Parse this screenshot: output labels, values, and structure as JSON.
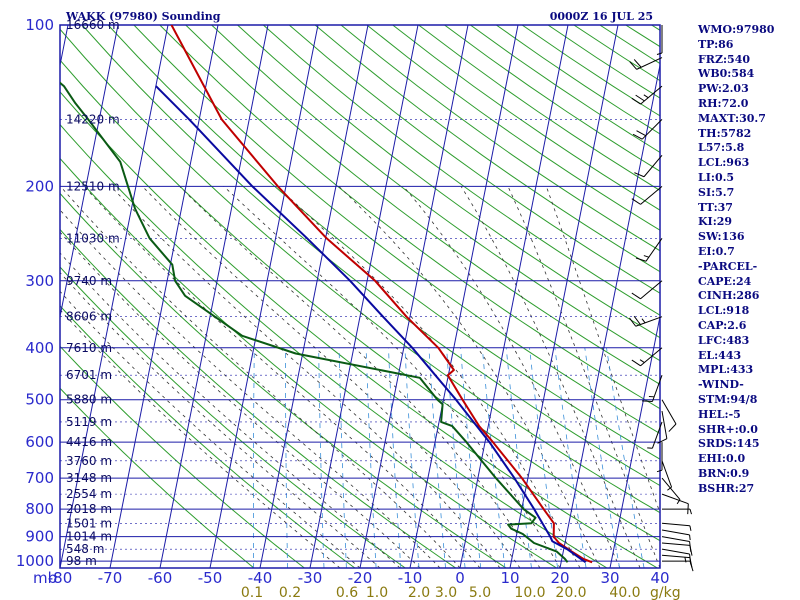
{
  "header": {
    "station": "WAKK (97980) Sounding",
    "datetime": "0000Z 16 JUL 25"
  },
  "colors": {
    "grid": "#1c1ca8",
    "dry_adiabat": "#2e9d2e",
    "moist_adiabat": "#333333",
    "mixing_ratio": "#3a8fd8",
    "temperature": "#c00000",
    "dewpoint": "#0a5a14",
    "parcel": "#0a0aa0",
    "wind": "#000000"
  },
  "chart_data": {
    "type": "line",
    "title": "WAKK (97980) Sounding",
    "pressure_axis": {
      "unit_label": "mb",
      "levels": [
        100,
        200,
        300,
        400,
        500,
        600,
        700,
        800,
        900,
        1000
      ],
      "scale": "log",
      "range": [
        100,
        1030
      ]
    },
    "temperature_axis": {
      "ticks": [
        -80,
        -70,
        -60,
        -50,
        -40,
        -30,
        -20,
        -10,
        0,
        10,
        20,
        30,
        40
      ],
      "tick_labels": [
        "-80",
        "-70",
        "-60",
        "-50",
        "-40",
        "-30",
        "-20",
        "-10",
        "0",
        "10",
        "20",
        "30",
        "40"
      ],
      "range": [
        -80,
        40
      ],
      "skewed": true
    },
    "height_labels": [
      {
        "p": 100,
        "label": "16660 m"
      },
      {
        "p": 150,
        "label": "14220 m"
      },
      {
        "p": 200,
        "label": "12510 m"
      },
      {
        "p": 250,
        "label": "11030 m"
      },
      {
        "p": 300,
        "label": "9740 m"
      },
      {
        "p": 350,
        "label": "8606 m"
      },
      {
        "p": 400,
        "label": "7610 m"
      },
      {
        "p": 450,
        "label": "6701 m"
      },
      {
        "p": 500,
        "label": "5880 m"
      },
      {
        "p": 550,
        "label": "5119 m"
      },
      {
        "p": 600,
        "label": "4416 m"
      },
      {
        "p": 650,
        "label": "3760 m"
      },
      {
        "p": 700,
        "label": "3148 m"
      },
      {
        "p": 750,
        "label": "2554 m"
      },
      {
        "p": 800,
        "label": "2018 m"
      },
      {
        "p": 850,
        "label": "1501 m"
      },
      {
        "p": 900,
        "label": "1014 m"
      },
      {
        "p": 950,
        "label": "548 m"
      },
      {
        "p": 1000,
        "label": "98 m"
      }
    ],
    "mixing_ratio_labels": [
      "0.1",
      "0.2",
      "0.6",
      "1.0",
      "2.0",
      "3.0",
      "5.0",
      "10.0",
      "20.0",
      "40.0"
    ],
    "mixing_ratio_unit": "g/kg",
    "series": [
      {
        "key": "temperature",
        "points": [
          [
            1005,
            26.2
          ],
          [
            990,
            24.3
          ],
          [
            960,
            21.7
          ],
          [
            925,
            18.8
          ],
          [
            900,
            17.5
          ],
          [
            850,
            17.0
          ],
          [
            800,
            14.4
          ],
          [
            700,
            8.8
          ],
          [
            600,
            1.6
          ],
          [
            560,
            -1.8
          ],
          [
            500,
            -6.2
          ],
          [
            450,
            -10.1
          ],
          [
            440,
            -9.1
          ],
          [
            400,
            -13.1
          ],
          [
            350,
            -20.7
          ],
          [
            300,
            -28.4
          ],
          [
            250,
            -39.8
          ],
          [
            200,
            -51.6
          ],
          [
            150,
            -65.5
          ],
          [
            100,
            -79.3
          ]
        ]
      },
      {
        "key": "dewpoint",
        "points": [
          [
            1005,
            21.3
          ],
          [
            990,
            20.6
          ],
          [
            960,
            18.7
          ],
          [
            925,
            13.8
          ],
          [
            890,
            11.2
          ],
          [
            870,
            8.7
          ],
          [
            855,
            7.9
          ],
          [
            850,
            12.5
          ],
          [
            830,
            13.1
          ],
          [
            800,
            10.4
          ],
          [
            700,
            3.6
          ],
          [
            600,
            -3.7
          ],
          [
            560,
            -7.2
          ],
          [
            550,
            -9.6
          ],
          [
            510,
            -10.0
          ],
          [
            500,
            -11.2
          ],
          [
            455,
            -15.6
          ],
          [
            410,
            -41.4
          ],
          [
            380,
            -52.8
          ],
          [
            320,
            -65.8
          ],
          [
            300,
            -68.4
          ],
          [
            280,
            -69.6
          ],
          [
            250,
            -75.2
          ],
          [
            220,
            -79.3
          ],
          [
            180,
            -84.1
          ],
          [
            150,
            -92.2
          ],
          [
            140,
            -95.4
          ],
          [
            130,
            -98.4
          ],
          [
            100,
            -115.1
          ]
        ]
      },
      {
        "key": "parcel",
        "points": [
          [
            1005,
            24.9
          ],
          [
            950,
            20.7
          ],
          [
            918,
            17.4
          ],
          [
            900,
            16.8
          ],
          [
            850,
            14.7
          ],
          [
            800,
            12.5
          ],
          [
            700,
            7.3
          ],
          [
            600,
            0.9
          ],
          [
            500,
            -7.5
          ],
          [
            450,
            -12.6
          ],
          [
            400,
            -18.3
          ],
          [
            350,
            -25.4
          ],
          [
            300,
            -33.4
          ],
          [
            250,
            -43.7
          ],
          [
            200,
            -56.7
          ],
          [
            150,
            -72.0
          ],
          [
            130,
            -80.0
          ]
        ]
      }
    ],
    "wind_barbs": [
      {
        "p": 1000,
        "dir": 90,
        "spd": 10
      },
      {
        "p": 975,
        "dir": 95,
        "spd": 15
      },
      {
        "p": 950,
        "dir": 100,
        "spd": 10
      },
      {
        "p": 925,
        "dir": 95,
        "spd": 10
      },
      {
        "p": 900,
        "dir": 100,
        "spd": 10
      },
      {
        "p": 875,
        "dir": 100,
        "spd": 5
      },
      {
        "p": 850,
        "dir": 95,
        "spd": 5
      },
      {
        "p": 800,
        "dir": 90,
        "spd": 5
      },
      {
        "p": 750,
        "dir": 110,
        "spd": 10
      },
      {
        "p": 700,
        "dir": 140,
        "spd": 5
      },
      {
        "p": 650,
        "dir": 160,
        "spd": 5
      },
      {
        "p": 600,
        "dir": 180,
        "spd": 5
      },
      {
        "p": 550,
        "dir": 200,
        "spd": 5
      },
      {
        "p": 525,
        "dir": 170,
        "spd": 10
      },
      {
        "p": 500,
        "dir": 150,
        "spd": 10
      },
      {
        "p": 450,
        "dir": 200,
        "spd": 15
      },
      {
        "p": 400,
        "dir": 230,
        "spd": 15
      },
      {
        "p": 350,
        "dir": 250,
        "spd": 25
      },
      {
        "p": 300,
        "dir": 230,
        "spd": 10
      },
      {
        "p": 250,
        "dir": 215,
        "spd": 15
      },
      {
        "p": 200,
        "dir": 230,
        "spd": 10
      },
      {
        "p": 175,
        "dir": 220,
        "spd": 10
      },
      {
        "p": 150,
        "dir": 225,
        "spd": 20
      },
      {
        "p": 130,
        "dir": 230,
        "spd": 25
      },
      {
        "p": 115,
        "dir": 245,
        "spd": 20
      },
      {
        "p": 100,
        "dir": 180,
        "spd": 5
      }
    ]
  },
  "indices": [
    "WMO:97980",
    "TP:86",
    "FRZ:540",
    "WB0:584",
    "PW:2.03",
    "RH:72.0",
    "MAXT:30.7",
    "TH:5782",
    "L57:5.8",
    "LCL:963",
    "LI:0.5",
    "SI:5.7",
    "TT:37",
    "KI:29",
    "SW:136",
    "EI:0.7",
    "-PARCEL-",
    "CAPE:24",
    "CINH:286",
    "LCL:918",
    "CAP:2.6",
    "LFC:483",
    "EL:443",
    "MPL:433",
    "-WIND-",
    "STM:94/8",
    "HEL:-5",
    "SHR+:0.0",
    "SRDS:145",
    "EHI:0.0",
    "BRN:0.9",
    "BSHR:27"
  ]
}
